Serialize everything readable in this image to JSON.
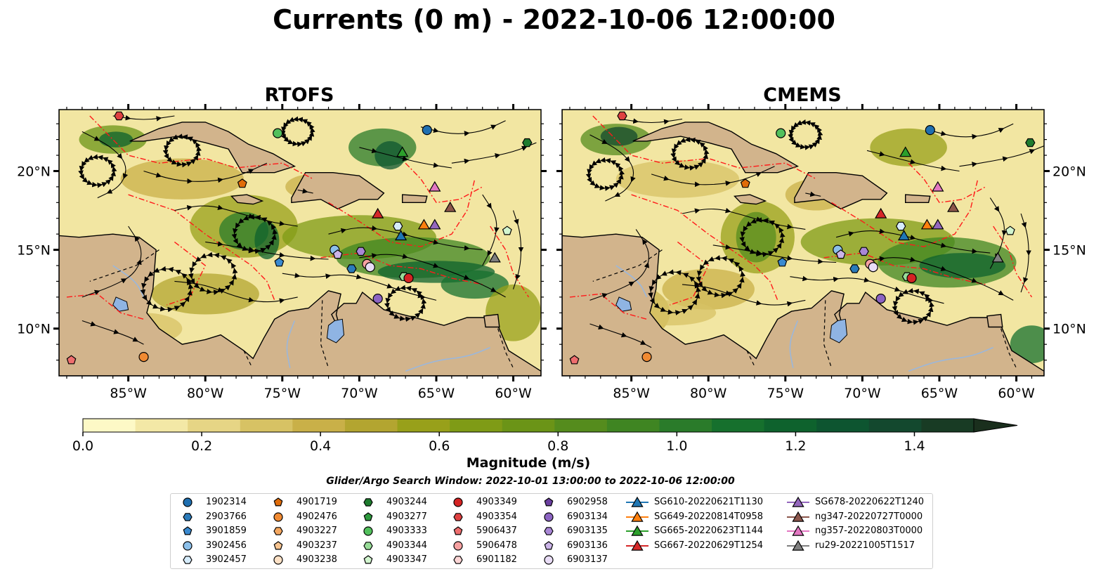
{
  "title": "Currents (0 m) - 2022-10-06 12:00:00",
  "panels": [
    {
      "title": "RTOFS"
    },
    {
      "title": "CMEMS"
    }
  ],
  "axes": {
    "lon_ticks": [
      "85°W",
      "80°W",
      "75°W",
      "70°W",
      "65°W",
      "60°W"
    ],
    "lat_ticks": [
      "20°N",
      "15°N",
      "10°N"
    ]
  },
  "colorbar": {
    "label": "Magnitude (m/s)",
    "ticks": [
      "0.0",
      "0.2",
      "0.4",
      "0.6",
      "0.8",
      "1.0",
      "1.2",
      "1.4"
    ],
    "colors": [
      "#fdf9c6",
      "#f3e8a6",
      "#e6d585",
      "#d7c264",
      "#c9b048",
      "#b3a530",
      "#98a01a",
      "#7f9b16",
      "#6b9417",
      "#558c1d",
      "#3f8522",
      "#2a7b2a",
      "#16702d",
      "#0e622d",
      "#0d5530",
      "#13482e",
      "#183b24",
      "#1a2f1d"
    ]
  },
  "search_window": "Glider/Argo Search Window: 2022-10-01 13:00:00 to 2022-10-06 12:00:00",
  "legend": {
    "columns": [
      [
        {
          "label": "1902314",
          "marker": "circle",
          "color": "#1f6fb0"
        },
        {
          "label": "2903766",
          "marker": "hexagon",
          "color": "#2b7bba"
        },
        {
          "label": "3901859",
          "marker": "pentagon",
          "color": "#3a8ad0"
        },
        {
          "label": "3902456",
          "marker": "circle",
          "color": "#8cc0ea"
        },
        {
          "label": "3902457",
          "marker": "hexagon",
          "color": "#d6ecfb"
        }
      ],
      [
        {
          "label": "4901719",
          "marker": "pentagon",
          "color": "#e06c0a"
        },
        {
          "label": "4902476",
          "marker": "circle",
          "color": "#f08a32"
        },
        {
          "label": "4903227",
          "marker": "hexagon",
          "color": "#f5a860"
        },
        {
          "label": "4903237",
          "marker": "pentagon",
          "color": "#f7c490"
        },
        {
          "label": "4903238",
          "marker": "circle",
          "color": "#fde1c6"
        }
      ],
      [
        {
          "label": "4903244",
          "marker": "hexagon",
          "color": "#1e7b2e"
        },
        {
          "label": "4903277",
          "marker": "pentagon",
          "color": "#2e9a3e"
        },
        {
          "label": "4903333",
          "marker": "circle",
          "color": "#52c05c"
        },
        {
          "label": "4903344",
          "marker": "hexagon",
          "color": "#98dc98"
        },
        {
          "label": "4903347",
          "marker": "pentagon",
          "color": "#d2f5cf"
        }
      ],
      [
        {
          "label": "4903349",
          "marker": "circle",
          "color": "#d42323"
        },
        {
          "label": "4903354",
          "marker": "hexagon",
          "color": "#df4141"
        },
        {
          "label": "5906437",
          "marker": "pentagon",
          "color": "#ee6e6e"
        },
        {
          "label": "5906478",
          "marker": "circle",
          "color": "#f6a1a1"
        },
        {
          "label": "6901182",
          "marker": "hexagon",
          "color": "#fbd5d5"
        }
      ],
      [
        {
          "label": "6902958",
          "marker": "pentagon",
          "color": "#6b3fa0"
        },
        {
          "label": "6903134",
          "marker": "circle",
          "color": "#8c64c2"
        },
        {
          "label": "6903135",
          "marker": "hexagon",
          "color": "#a987d6"
        },
        {
          "label": "6903136",
          "marker": "pentagon",
          "color": "#cbb4e8"
        },
        {
          "label": "6903137",
          "marker": "circle",
          "color": "#e9ddf6"
        }
      ],
      [
        {
          "label": "SG610-20220621T1130",
          "marker": "triangle",
          "color": "#1f77b4"
        },
        {
          "label": "SG649-20220814T0958",
          "marker": "triangle",
          "color": "#ff7f0e"
        },
        {
          "label": "SG665-20220623T1144",
          "marker": "triangle",
          "color": "#2ca02c"
        },
        {
          "label": "SG667-20220629T1254",
          "marker": "triangle",
          "color": "#d62728"
        }
      ],
      [
        {
          "label": "SG678-20220622T1240",
          "marker": "triangle",
          "color": "#9467bd"
        },
        {
          "label": "ng347-20220727T0000",
          "marker": "triangle",
          "color": "#8c564b"
        },
        {
          "label": "ng357-20220803T0000",
          "marker": "triangle",
          "color": "#e377c2"
        },
        {
          "label": "ru29-20221005T1517",
          "marker": "triangle",
          "color": "#7f7f7f"
        }
      ]
    ]
  },
  "markers": [
    {
      "id": "4903354",
      "lon": -85.6,
      "lat": 23.5
    },
    {
      "id": "4903333",
      "lon": -75.3,
      "lat": 22.4
    },
    {
      "id": "1902314",
      "lon": -65.6,
      "lat": 22.6
    },
    {
      "id": "4903244",
      "lon": -59.1,
      "lat": 21.8
    },
    {
      "id": "SG665-20220623T1144",
      "lon": -67.2,
      "lat": 21.2
    },
    {
      "id": "4901719",
      "lon": -77.6,
      "lat": 19.2
    },
    {
      "id": "ng357-20220803T0000",
      "lon": -65.1,
      "lat": 19.0
    },
    {
      "id": "ng347-20220727T0000",
      "lon": -64.1,
      "lat": 17.7
    },
    {
      "id": "SG667-20220629T1254",
      "lon": -68.8,
      "lat": 17.3
    },
    {
      "id": "3902457",
      "lon": -67.5,
      "lat": 16.5
    },
    {
      "id": "SG649-20220814T0958",
      "lon": -65.8,
      "lat": 16.6
    },
    {
      "id": "SG678-20220622T1240",
      "lon": -65.1,
      "lat": 16.6
    },
    {
      "id": "4903347",
      "lon": -60.4,
      "lat": 16.2
    },
    {
      "id": "SG610-20220621T1130",
      "lon": -67.3,
      "lat": 15.9
    },
    {
      "id": "3902456",
      "lon": -71.6,
      "lat": 15.0
    },
    {
      "id": "6903136",
      "lon": -71.4,
      "lat": 14.7
    },
    {
      "id": "6903135",
      "lon": -69.9,
      "lat": 14.9
    },
    {
      "id": "3901859",
      "lon": -75.2,
      "lat": 14.2
    },
    {
      "id": "2903766",
      "lon": -70.5,
      "lat": 13.8
    },
    {
      "id": "5906478",
      "lon": -69.5,
      "lat": 14.1
    },
    {
      "id": "6903137",
      "lon": -69.3,
      "lat": 13.9
    },
    {
      "id": "ru29-20221005T1517",
      "lon": -61.2,
      "lat": 14.5
    },
    {
      "id": "4903344",
      "lon": -67.1,
      "lat": 13.3
    },
    {
      "id": "4903349",
      "lon": -66.8,
      "lat": 13.2
    },
    {
      "id": "6903134",
      "lon": -68.8,
      "lat": 11.9
    },
    {
      "id": "5906437",
      "lon": -88.7,
      "lat": 8.0
    },
    {
      "id": "4902476",
      "lon": -84.0,
      "lat": 8.2
    }
  ]
}
